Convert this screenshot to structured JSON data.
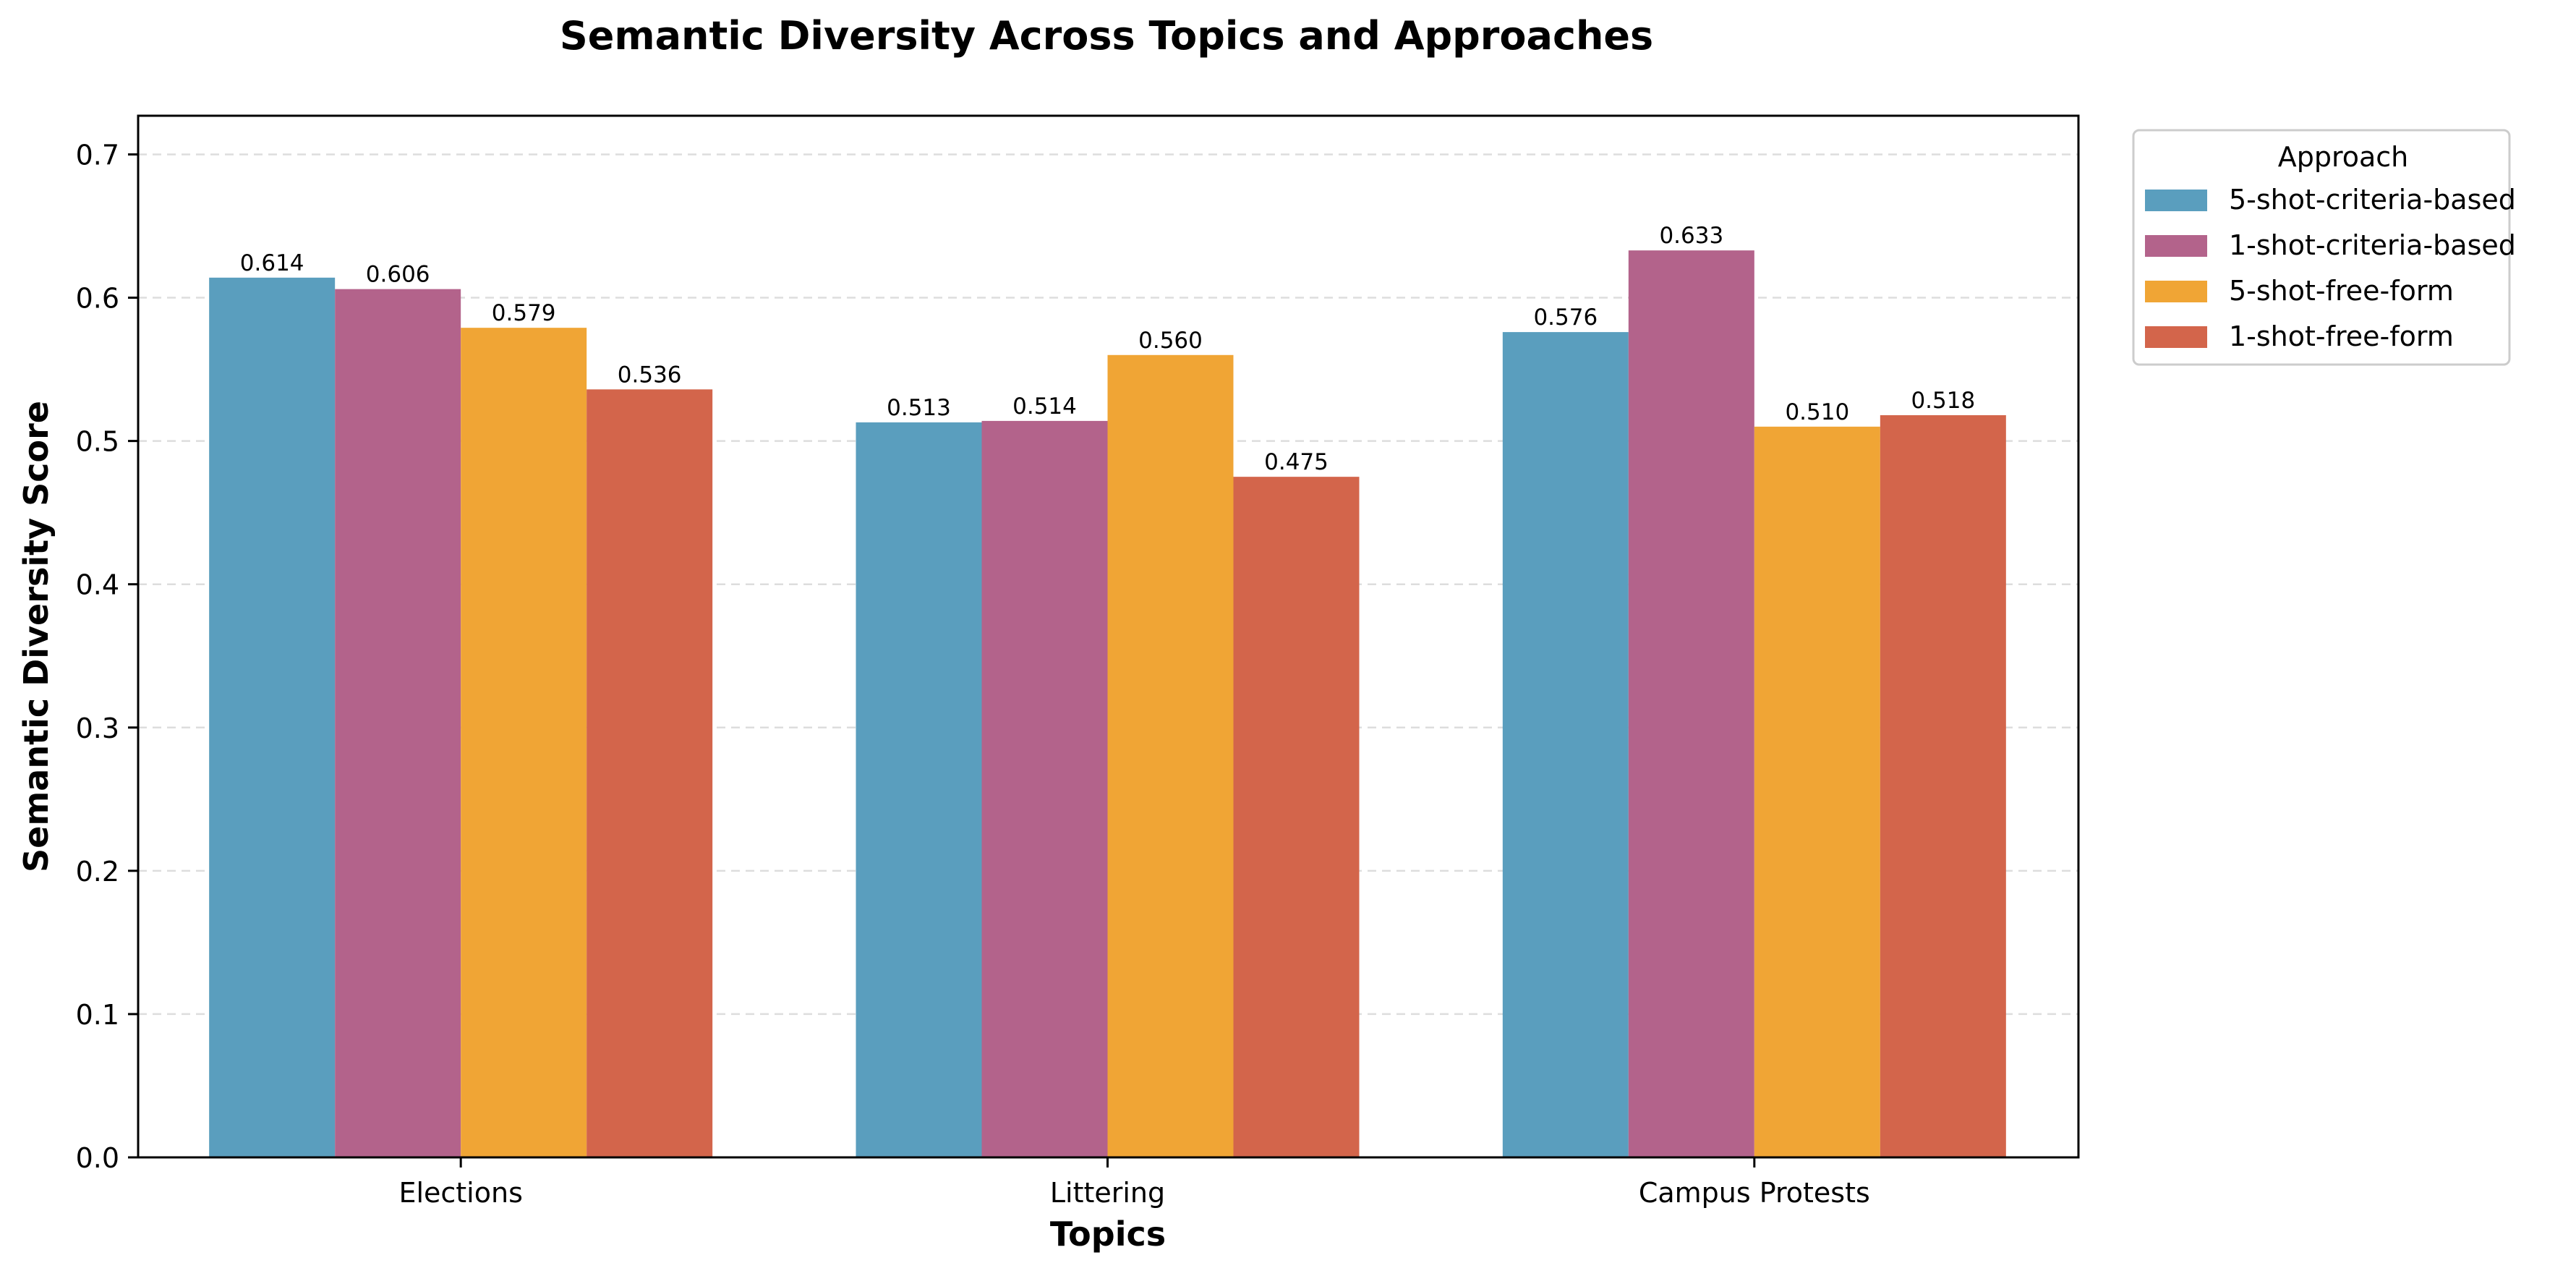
{
  "chart_data": {
    "type": "bar",
    "title": "Semantic Diversity Across Topics and Approaches",
    "xlabel": "Topics",
    "ylabel": "Semantic Diversity Score",
    "categories": [
      "Elections",
      "Littering",
      "Campus Protests"
    ],
    "series": [
      {
        "name": "5-shot-criteria-based",
        "values": [
          0.614,
          0.513,
          0.576
        ],
        "color": "#5A9EBE"
      },
      {
        "name": "1-shot-criteria-based",
        "values": [
          0.606,
          0.514,
          0.633
        ],
        "color": "#B3638B"
      },
      {
        "name": "5-shot-free-form",
        "values": [
          0.579,
          0.56,
          0.51
        ],
        "color": "#F0A535"
      },
      {
        "name": "1-shot-free-form",
        "values": [
          0.536,
          0.475,
          0.518
        ],
        "color": "#D3654B"
      }
    ],
    "data_labels": [
      [
        "0.614",
        "0.513",
        "0.576"
      ],
      [
        "0.606",
        "0.514",
        "0.633"
      ],
      [
        "0.579",
        "0.560",
        "0.510"
      ],
      [
        "0.536",
        "0.475",
        "0.518"
      ]
    ],
    "ylim": [
      0,
      0.727
    ],
    "yticks": [
      "0.0",
      "0.1",
      "0.2",
      "0.3",
      "0.4",
      "0.5",
      "0.6",
      "0.7"
    ],
    "grid": "horizontal dashed",
    "legend": {
      "title": "Approach",
      "placement": "outside right, top"
    }
  }
}
